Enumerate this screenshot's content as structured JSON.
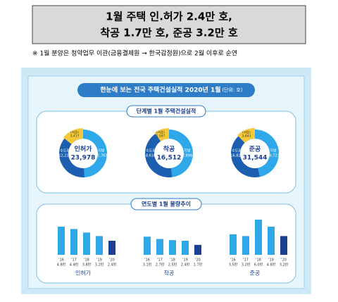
{
  "header": {
    "lines": [
      "1월 주택 인.허가 2.4만 호,",
      "착공 1.7만 호, 준공 3.2만 호"
    ]
  },
  "note": "※ 1월 분양은 청약업무 이관(금융결제원 → 한국감정원)으로 2월 이후로 순연",
  "infographic": {
    "title": "한눈에 보는 전국 주택건설실적 2020년 1월",
    "unit": "(단위: 호)",
    "donuts": {
      "title": "단계별 1월 주택건설실적",
      "items": [
        {
          "name": "인허가",
          "total": 23978,
          "total_label": "23,978",
          "segments": [
            {
              "name": "수도권",
              "value": 12213,
              "label": "12,213",
              "color": "#1c5fb0"
            },
            {
              "name": "지방",
              "value": 11765,
              "label": "11,765",
              "color": "#2ea8e8"
            },
            {
              "name": "(서울)",
              "value": 3417,
              "label": "3,417",
              "color": "#f5c93a"
            }
          ]
        },
        {
          "name": "착공",
          "total": 16512,
          "total_label": "16,512",
          "segments": [
            {
              "name": "수도권",
              "value": 8616,
              "label": "8,616",
              "color": "#1c5fb0"
            },
            {
              "name": "지방",
              "value": 7896,
              "label": "7,896",
              "color": "#2ea8e8"
            },
            {
              "name": "(서울)",
              "value": 1587,
              "label": "1,587",
              "color": "#f5c93a"
            }
          ]
        },
        {
          "name": "준공",
          "total": 31544,
          "total_label": "31,544",
          "segments": [
            {
              "name": "수도권",
              "value": 16821,
              "label": "16,821",
              "color": "#1c5fb0"
            },
            {
              "name": "지방",
              "value": 14723,
              "label": "14,723",
              "color": "#2ea8e8"
            },
            {
              "name": "(서울)",
              "value": 3843,
              "label": "3,843",
              "color": "#f5c93a"
            }
          ]
        }
      ]
    },
    "bars": {
      "title": "연도별 1월 물량추이",
      "color": "#2ea8e8",
      "last_color": "#1c3f8f",
      "groups": [
        {
          "name": "인허가",
          "years": [
            "'16",
            "'17",
            "'18",
            "'19",
            "'20"
          ],
          "values": [
            4.8,
            4.4,
            3.8,
            3.2,
            2.4
          ],
          "value_labels": [
            "4.8만",
            "4.4만",
            "3.8만",
            "3.2만",
            "2.4만"
          ]
        },
        {
          "name": "착공",
          "years": [
            "'16",
            "'17",
            "'18",
            "'19",
            "'20"
          ],
          "values": [
            3.1,
            2.7,
            2.5,
            2.4,
            1.7
          ],
          "value_labels": [
            "3.1만",
            "2.7만",
            "2.5만",
            "2.4만",
            "1.7만"
          ]
        },
        {
          "name": "준공",
          "years": [
            "'16",
            "'17",
            "'18",
            "'19",
            "'20"
          ],
          "values": [
            3.5,
            3.2,
            6.0,
            4.8,
            3.2
          ],
          "value_labels": [
            "3.5만",
            "3.2만",
            "6.0만",
            "4.8만",
            "3.2만"
          ]
        }
      ]
    }
  }
}
